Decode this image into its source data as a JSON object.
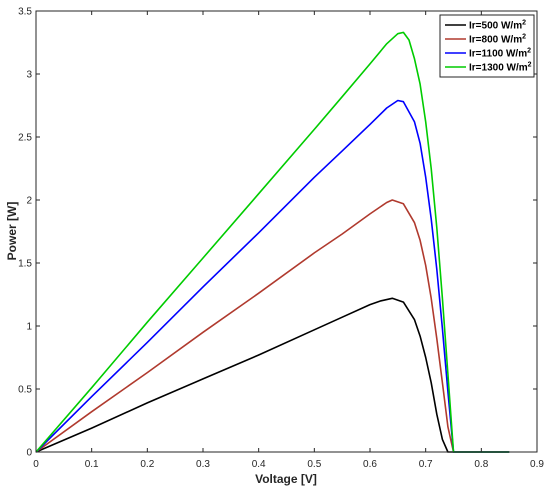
{
  "chart_data": {
    "type": "line",
    "xlabel": "Voltage [V]",
    "ylabel": "Power [W]",
    "xlim": [
      0,
      0.9
    ],
    "ylim": [
      0,
      3.5
    ],
    "x_ticks": [
      "0",
      "0.1",
      "0.2",
      "0.3",
      "0.4",
      "0.5",
      "0.6",
      "0.7",
      "0.8",
      "0.9"
    ],
    "y_ticks": [
      "0",
      "0.5",
      "1",
      "1.5",
      "2",
      "2.5",
      "3",
      "3.5"
    ],
    "grid": false,
    "legend_position": "top-right",
    "series": [
      {
        "name": "Ir=500 W/m",
        "name_sup": "2",
        "color": "#000000",
        "x": [
          0,
          0.1,
          0.2,
          0.3,
          0.4,
          0.5,
          0.55,
          0.6,
          0.62,
          0.64,
          0.66,
          0.68,
          0.69,
          0.7,
          0.71,
          0.72,
          0.73,
          0.74,
          0.85
        ],
        "y": [
          0,
          0.19,
          0.39,
          0.58,
          0.77,
          0.97,
          1.07,
          1.17,
          1.2,
          1.22,
          1.19,
          1.05,
          0.92,
          0.75,
          0.55,
          0.3,
          0.1,
          0,
          0
        ]
      },
      {
        "name": "Ir=800 W/m",
        "name_sup": "2",
        "color": "#b03a2e",
        "x": [
          0,
          0.1,
          0.2,
          0.3,
          0.4,
          0.5,
          0.55,
          0.6,
          0.63,
          0.64,
          0.66,
          0.68,
          0.69,
          0.7,
          0.71,
          0.72,
          0.73,
          0.74,
          0.75,
          0.85
        ],
        "y": [
          0,
          0.32,
          0.63,
          0.95,
          1.26,
          1.58,
          1.73,
          1.89,
          1.98,
          2.0,
          1.97,
          1.82,
          1.68,
          1.48,
          1.22,
          0.9,
          0.55,
          0.2,
          0,
          0
        ]
      },
      {
        "name": "Ir=1100 W/m",
        "name_sup": "2",
        "color": "#0000ff",
        "x": [
          0,
          0.1,
          0.2,
          0.3,
          0.4,
          0.5,
          0.55,
          0.6,
          0.63,
          0.65,
          0.66,
          0.68,
          0.69,
          0.7,
          0.71,
          0.72,
          0.73,
          0.74,
          0.75,
          0.85
        ],
        "y": [
          0,
          0.44,
          0.87,
          1.31,
          1.74,
          2.18,
          2.39,
          2.6,
          2.73,
          2.79,
          2.78,
          2.62,
          2.45,
          2.18,
          1.85,
          1.45,
          0.98,
          0.48,
          0,
          0
        ]
      },
      {
        "name": "Ir=1300 W/m",
        "name_sup": "2",
        "color": "#00cc00",
        "x": [
          0,
          0.1,
          0.2,
          0.3,
          0.4,
          0.5,
          0.55,
          0.6,
          0.63,
          0.65,
          0.66,
          0.67,
          0.68,
          0.69,
          0.7,
          0.71,
          0.72,
          0.73,
          0.74,
          0.75,
          0.85
        ],
        "y": [
          0,
          0.51,
          1.03,
          1.54,
          2.05,
          2.56,
          2.82,
          3.08,
          3.24,
          3.32,
          3.33,
          3.27,
          3.12,
          2.92,
          2.62,
          2.25,
          1.78,
          1.22,
          0.62,
          0,
          0
        ]
      }
    ]
  }
}
